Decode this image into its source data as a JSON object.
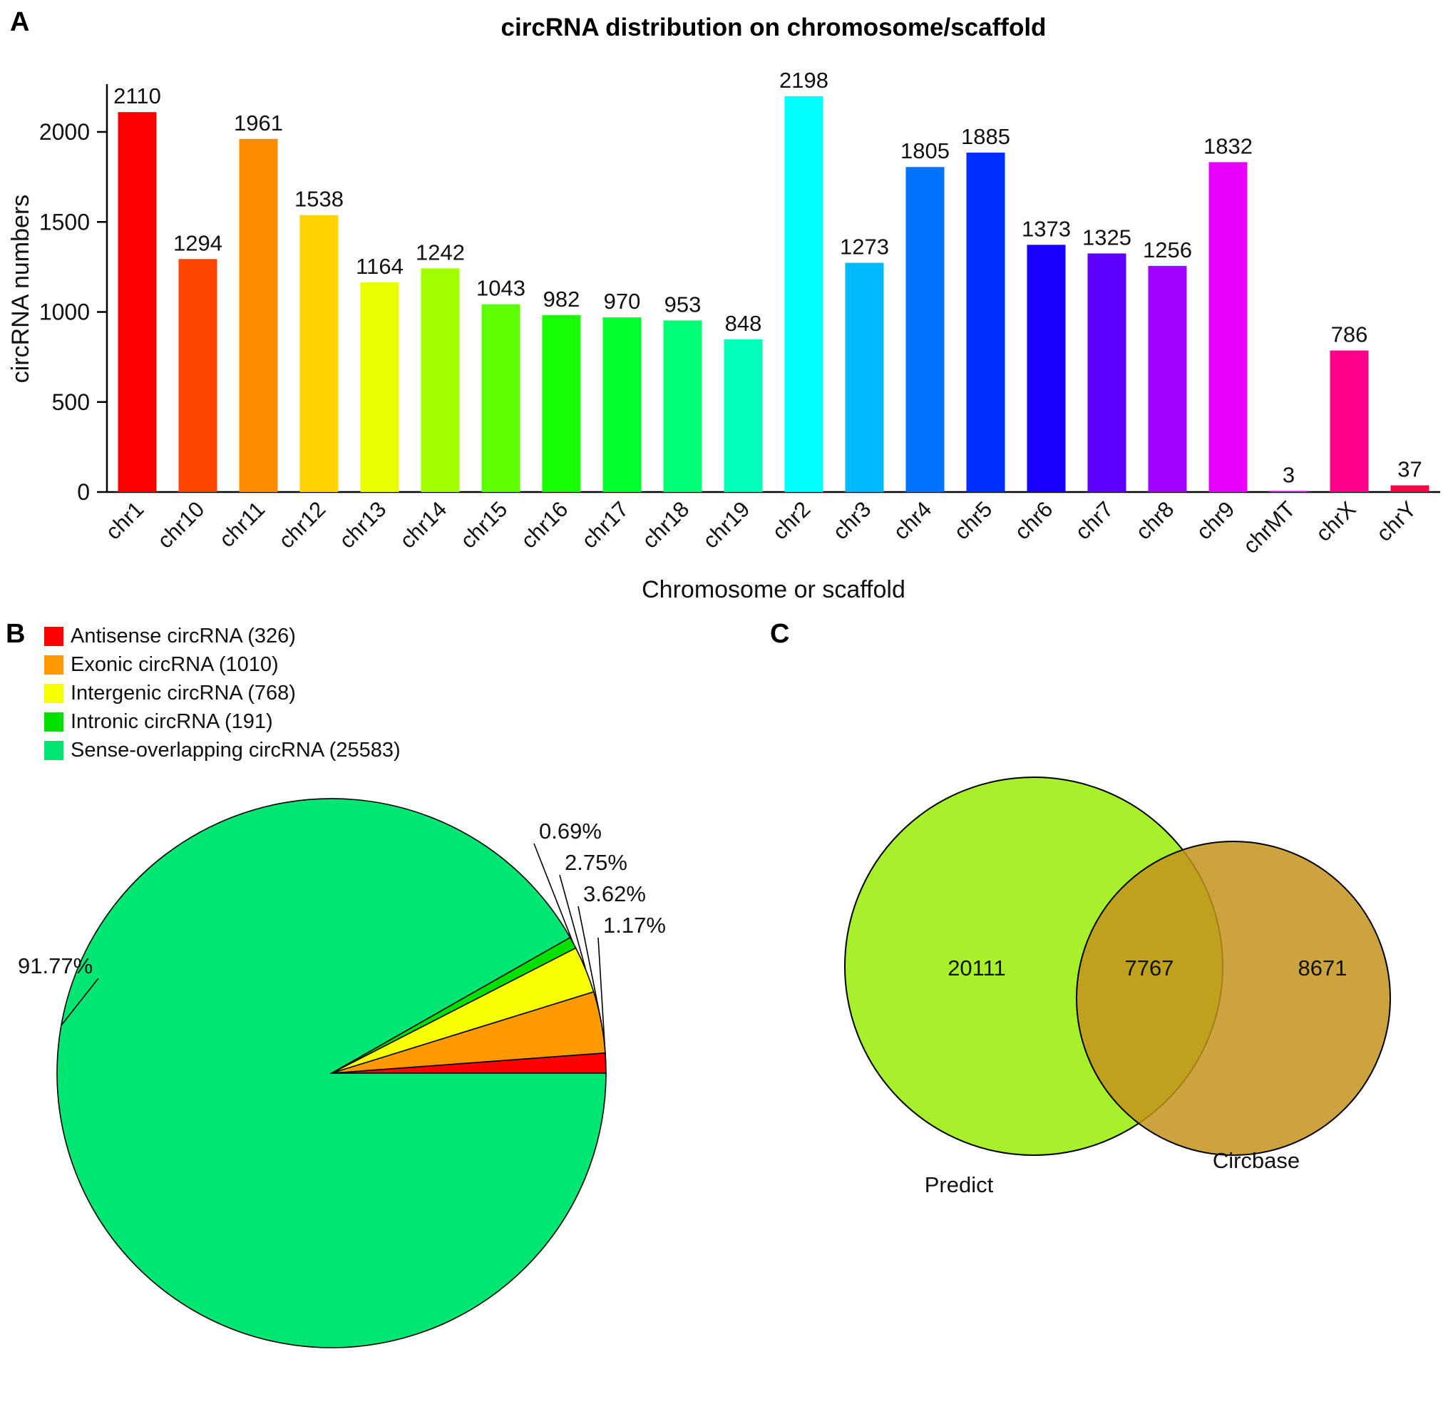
{
  "panels": {
    "a": "A",
    "b": "B",
    "c": "C"
  },
  "chart_data": [
    {
      "type": "bar",
      "title": "circRNA distribution on chromosome/scaffold",
      "xlabel": "Chromosome or scaffold",
      "ylabel": "circRNA numbers",
      "ylim": [
        0,
        2300
      ],
      "yticks": [
        "0",
        "500",
        "1000",
        "1500",
        "2000"
      ],
      "categories": [
        "chr1",
        "chr10",
        "chr11",
        "chr12",
        "chr13",
        "chr14",
        "chr15",
        "chr16",
        "chr17",
        "chr18",
        "chr19",
        "chr2",
        "chr3",
        "chr4",
        "chr5",
        "chr6",
        "chr7",
        "chr8",
        "chr9",
        "chrMT",
        "chrX",
        "chrY"
      ],
      "values": [
        2110,
        1294,
        1961,
        1538,
        1164,
        1242,
        1043,
        982,
        970,
        953,
        848,
        2198,
        1273,
        1805,
        1885,
        1373,
        1325,
        1256,
        1832,
        3,
        786,
        37
      ],
      "colors": [
        "#FF0000",
        "#FF4600",
        "#FF8B00",
        "#FFD100",
        "#E8FF00",
        "#A2FF00",
        "#5DFF00",
        "#17FF00",
        "#00FF2E",
        "#00FF74",
        "#00FFB9",
        "#00FFFF",
        "#00B9FF",
        "#0074FF",
        "#002EFF",
        "#1700FF",
        "#5D00FF",
        "#A200FF",
        "#E800FF",
        "#FF00D1",
        "#FF008B",
        "#FF0046"
      ]
    },
    {
      "type": "pie",
      "legend_position": "top-left",
      "legend": [
        {
          "name": "antisense",
          "label": "Antisense circRNA (326)",
          "value": 326,
          "color": "#FF0000"
        },
        {
          "name": "exonic",
          "label": "Exonic circRNA (1010)",
          "value": 1010,
          "color": "#FF9900"
        },
        {
          "name": "intergenic",
          "label": "Intergenic circRNA (768)",
          "value": 768,
          "color": "#F7FF00"
        },
        {
          "name": "intronic",
          "label": "Intronic circRNA (191)",
          "value": 191,
          "color": "#00E100"
        },
        {
          "name": "sense-overlapping",
          "label": "Sense-overlapping circRNA (25583)",
          "value": 25583,
          "color": "#00E673"
        }
      ],
      "slices": [
        {
          "name": "antisense",
          "pct_label": "1.17%",
          "pct": 1.17,
          "color": "#FF0000"
        },
        {
          "name": "exonic",
          "pct_label": "3.62%",
          "pct": 3.62,
          "color": "#FF9900"
        },
        {
          "name": "intergenic",
          "pct_label": "2.75%",
          "pct": 2.75,
          "color": "#F7FF00"
        },
        {
          "name": "intronic",
          "pct_label": "0.69%",
          "pct": 0.69,
          "color": "#00E100"
        },
        {
          "name": "sense-overlapping",
          "pct_label": "91.77%",
          "pct": 91.77,
          "color": "#00E673"
        }
      ]
    },
    {
      "type": "venn",
      "sets": [
        {
          "name": "predict",
          "label": "Predict",
          "value": "20111",
          "color": "#A8EF2C"
        },
        {
          "name": "circbase",
          "label": "Circbase",
          "value": "8671",
          "color": "#C3931C"
        }
      ],
      "overlap_value": "7767"
    }
  ]
}
